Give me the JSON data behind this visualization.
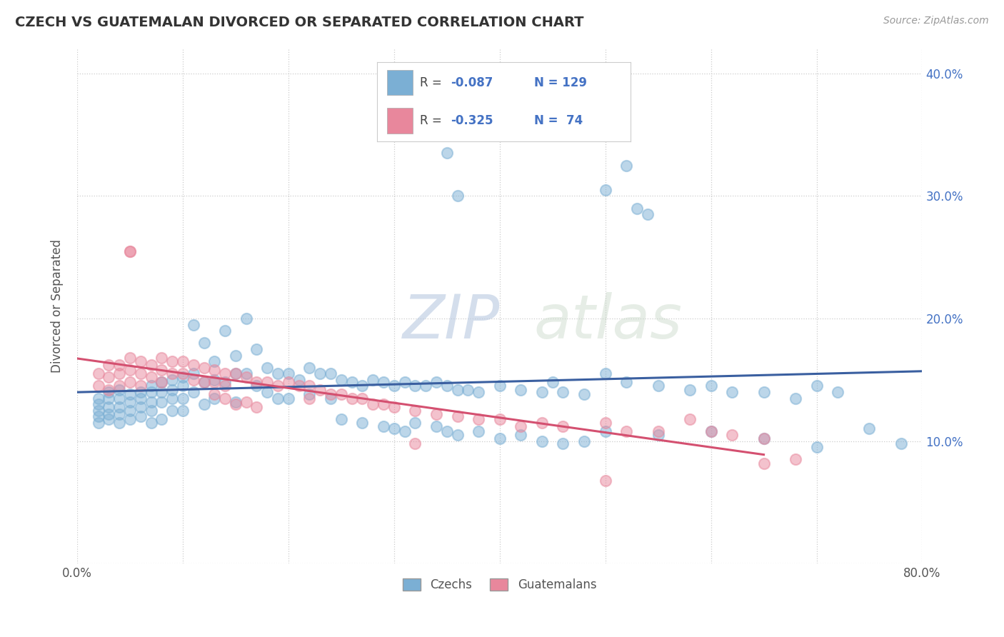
{
  "title": "CZECH VS GUATEMALAN DIVORCED OR SEPARATED CORRELATION CHART",
  "source": "Source: ZipAtlas.com",
  "ylabel": "Divorced or Separated",
  "xlim": [
    0.0,
    0.8
  ],
  "ylim": [
    0.0,
    0.42
  ],
  "czech_color": "#7bafd4",
  "guatemalan_color": "#e8879c",
  "czech_line_color": "#3a5fa0",
  "guatemalan_line_color": "#d45070",
  "grid_color": "#cccccc",
  "background_color": "#ffffff",
  "title_color": "#333333",
  "tick_color": "#4472c4",
  "watermark_color": "#d0d8e8",
  "czech_points_x": [
    0.02,
    0.02,
    0.02,
    0.02,
    0.02,
    0.03,
    0.03,
    0.03,
    0.03,
    0.03,
    0.04,
    0.04,
    0.04,
    0.04,
    0.04,
    0.05,
    0.05,
    0.05,
    0.05,
    0.06,
    0.06,
    0.06,
    0.06,
    0.07,
    0.07,
    0.07,
    0.07,
    0.07,
    0.08,
    0.08,
    0.08,
    0.08,
    0.09,
    0.09,
    0.09,
    0.09,
    0.1,
    0.1,
    0.1,
    0.1,
    0.11,
    0.11,
    0.11,
    0.12,
    0.12,
    0.12,
    0.13,
    0.13,
    0.13,
    0.14,
    0.14,
    0.15,
    0.15,
    0.15,
    0.16,
    0.16,
    0.17,
    0.17,
    0.18,
    0.18,
    0.19,
    0.19,
    0.2,
    0.2,
    0.21,
    0.22,
    0.22,
    0.23,
    0.24,
    0.24,
    0.25,
    0.26,
    0.27,
    0.28,
    0.29,
    0.3,
    0.31,
    0.32,
    0.33,
    0.34,
    0.35,
    0.36,
    0.37,
    0.38,
    0.4,
    0.42,
    0.44,
    0.45,
    0.46,
    0.48,
    0.5,
    0.52,
    0.55,
    0.58,
    0.6,
    0.62,
    0.65,
    0.68,
    0.7,
    0.72,
    0.25,
    0.27,
    0.29,
    0.3,
    0.31,
    0.32,
    0.34,
    0.35,
    0.36,
    0.38,
    0.4,
    0.42,
    0.44,
    0.46,
    0.48,
    0.5,
    0.55,
    0.6,
    0.65,
    0.7,
    0.75,
    0.78,
    0.34,
    0.35,
    0.36,
    0.5,
    0.52,
    0.53,
    0.54
  ],
  "czech_points_y": [
    0.135,
    0.13,
    0.125,
    0.12,
    0.115,
    0.14,
    0.135,
    0.128,
    0.122,
    0.118,
    0.142,
    0.135,
    0.128,
    0.122,
    0.115,
    0.138,
    0.132,
    0.125,
    0.118,
    0.14,
    0.135,
    0.128,
    0.12,
    0.145,
    0.14,
    0.132,
    0.125,
    0.115,
    0.148,
    0.14,
    0.132,
    0.118,
    0.15,
    0.142,
    0.135,
    0.125,
    0.152,
    0.145,
    0.135,
    0.125,
    0.195,
    0.155,
    0.14,
    0.18,
    0.148,
    0.13,
    0.165,
    0.15,
    0.135,
    0.19,
    0.148,
    0.17,
    0.155,
    0.132,
    0.2,
    0.155,
    0.175,
    0.145,
    0.16,
    0.14,
    0.155,
    0.135,
    0.155,
    0.135,
    0.15,
    0.16,
    0.138,
    0.155,
    0.155,
    0.135,
    0.15,
    0.148,
    0.145,
    0.15,
    0.148,
    0.145,
    0.148,
    0.145,
    0.145,
    0.148,
    0.145,
    0.142,
    0.142,
    0.14,
    0.145,
    0.142,
    0.14,
    0.148,
    0.14,
    0.138,
    0.155,
    0.148,
    0.145,
    0.142,
    0.145,
    0.14,
    0.14,
    0.135,
    0.145,
    0.14,
    0.118,
    0.115,
    0.112,
    0.11,
    0.108,
    0.115,
    0.112,
    0.108,
    0.105,
    0.108,
    0.102,
    0.105,
    0.1,
    0.098,
    0.1,
    0.108,
    0.105,
    0.108,
    0.102,
    0.095,
    0.11,
    0.098,
    0.36,
    0.335,
    0.3,
    0.305,
    0.325,
    0.29,
    0.285
  ],
  "guatemalan_points_x": [
    0.02,
    0.02,
    0.03,
    0.03,
    0.03,
    0.04,
    0.04,
    0.04,
    0.05,
    0.05,
    0.05,
    0.05,
    0.06,
    0.06,
    0.06,
    0.07,
    0.07,
    0.08,
    0.08,
    0.08,
    0.09,
    0.09,
    0.1,
    0.1,
    0.11,
    0.11,
    0.12,
    0.12,
    0.13,
    0.13,
    0.13,
    0.14,
    0.14,
    0.14,
    0.15,
    0.15,
    0.16,
    0.16,
    0.17,
    0.17,
    0.18,
    0.19,
    0.2,
    0.21,
    0.22,
    0.22,
    0.23,
    0.24,
    0.25,
    0.26,
    0.27,
    0.28,
    0.29,
    0.3,
    0.32,
    0.34,
    0.36,
    0.38,
    0.4,
    0.42,
    0.44,
    0.46,
    0.5,
    0.52,
    0.55,
    0.58,
    0.6,
    0.62,
    0.65,
    0.05,
    0.32,
    0.5,
    0.65,
    0.68
  ],
  "guatemalan_points_y": [
    0.155,
    0.145,
    0.162,
    0.152,
    0.142,
    0.162,
    0.155,
    0.145,
    0.168,
    0.158,
    0.148,
    0.255,
    0.165,
    0.155,
    0.145,
    0.162,
    0.152,
    0.168,
    0.158,
    0.148,
    0.165,
    0.155,
    0.165,
    0.155,
    0.162,
    0.15,
    0.16,
    0.148,
    0.158,
    0.148,
    0.138,
    0.155,
    0.145,
    0.135,
    0.155,
    0.13,
    0.152,
    0.132,
    0.148,
    0.128,
    0.148,
    0.145,
    0.148,
    0.145,
    0.145,
    0.135,
    0.142,
    0.138,
    0.138,
    0.135,
    0.135,
    0.13,
    0.13,
    0.128,
    0.125,
    0.122,
    0.12,
    0.118,
    0.118,
    0.112,
    0.115,
    0.112,
    0.115,
    0.108,
    0.108,
    0.118,
    0.108,
    0.105,
    0.102,
    0.255,
    0.098,
    0.068,
    0.082,
    0.085
  ]
}
